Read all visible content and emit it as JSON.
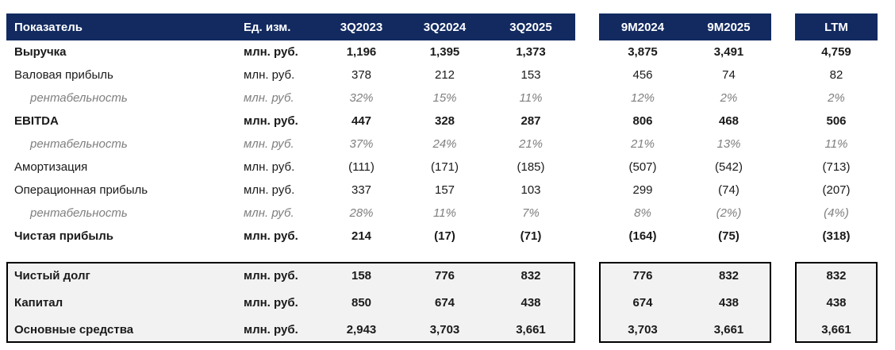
{
  "colors": {
    "header_bg": "#122A60",
    "header_text": "#FFFFFF",
    "box_bg": "#F2F2F2",
    "box_border": "#000000",
    "muted_text": "#7F7F7F"
  },
  "table": {
    "header": {
      "indicator": "Показатель",
      "unit": "Ед. изм.",
      "quarters": [
        "3Q2023",
        "3Q2024",
        "3Q2025"
      ],
      "periods": [
        "9M2024",
        "9M2025"
      ],
      "ltm": "LTM"
    },
    "rows": [
      {
        "label": "Выручка",
        "unit": "млн. руб.",
        "style": "bold",
        "values": [
          "1,196",
          "1,395",
          "1,373"
        ],
        "periods": [
          "3,875",
          "3,491"
        ],
        "ltm": "4,759"
      },
      {
        "label": "Валовая прибыль",
        "unit": "млн. руб.",
        "style": "normal",
        "values": [
          "378",
          "212",
          "153"
        ],
        "periods": [
          "456",
          "74"
        ],
        "ltm": "82"
      },
      {
        "label": "рентабельность",
        "unit": "млн. руб.",
        "style": "margin",
        "values": [
          "32%",
          "15%",
          "11%"
        ],
        "periods": [
          "12%",
          "2%"
        ],
        "ltm": "2%"
      },
      {
        "label": "EBITDA",
        "unit": "млн. руб.",
        "style": "bold",
        "values": [
          "447",
          "328",
          "287"
        ],
        "periods": [
          "806",
          "468"
        ],
        "ltm": "506"
      },
      {
        "label": "рентабельность",
        "unit": "млн. руб.",
        "style": "margin",
        "values": [
          "37%",
          "24%",
          "21%"
        ],
        "periods": [
          "21%",
          "13%"
        ],
        "ltm": "11%"
      },
      {
        "label": "Амортизация",
        "unit": "млн. руб.",
        "style": "normal",
        "values": [
          "(111)",
          "(171)",
          "(185)"
        ],
        "periods": [
          "(507)",
          "(542)"
        ],
        "ltm": "(713)"
      },
      {
        "label": "Операционная прибыль",
        "unit": "млн. руб.",
        "style": "normal",
        "values": [
          "337",
          "157",
          "103"
        ],
        "periods": [
          "299",
          "(74)"
        ],
        "ltm": "(207)"
      },
      {
        "label": "рентабельность",
        "unit": "млн. руб.",
        "style": "margin",
        "values": [
          "28%",
          "11%",
          "7%"
        ],
        "periods": [
          "8%",
          "(2%)"
        ],
        "ltm": "(4%)"
      },
      {
        "label": "Чистая прибыль",
        "unit": "млн. руб.",
        "style": "bold",
        "values": [
          "214",
          "(17)",
          "(71)"
        ],
        "periods": [
          "(164)",
          "(75)"
        ],
        "ltm": "(318)"
      }
    ],
    "balance_rows": [
      {
        "label": "Чистый долг",
        "unit": "млн. руб.",
        "style": "bold",
        "values": [
          "158",
          "776",
          "832"
        ],
        "periods": [
          "776",
          "832"
        ],
        "ltm": "832"
      },
      {
        "label": "Капитал",
        "unit": "млн. руб.",
        "style": "bold",
        "values": [
          "850",
          "674",
          "438"
        ],
        "periods": [
          "674",
          "438"
        ],
        "ltm": "438"
      },
      {
        "label": "Основные средства",
        "unit": "млн. руб.",
        "style": "bold",
        "values": [
          "2,943",
          "3,703",
          "3,661"
        ],
        "periods": [
          "3,703",
          "3,661"
        ],
        "ltm": "3,661"
      }
    ]
  }
}
